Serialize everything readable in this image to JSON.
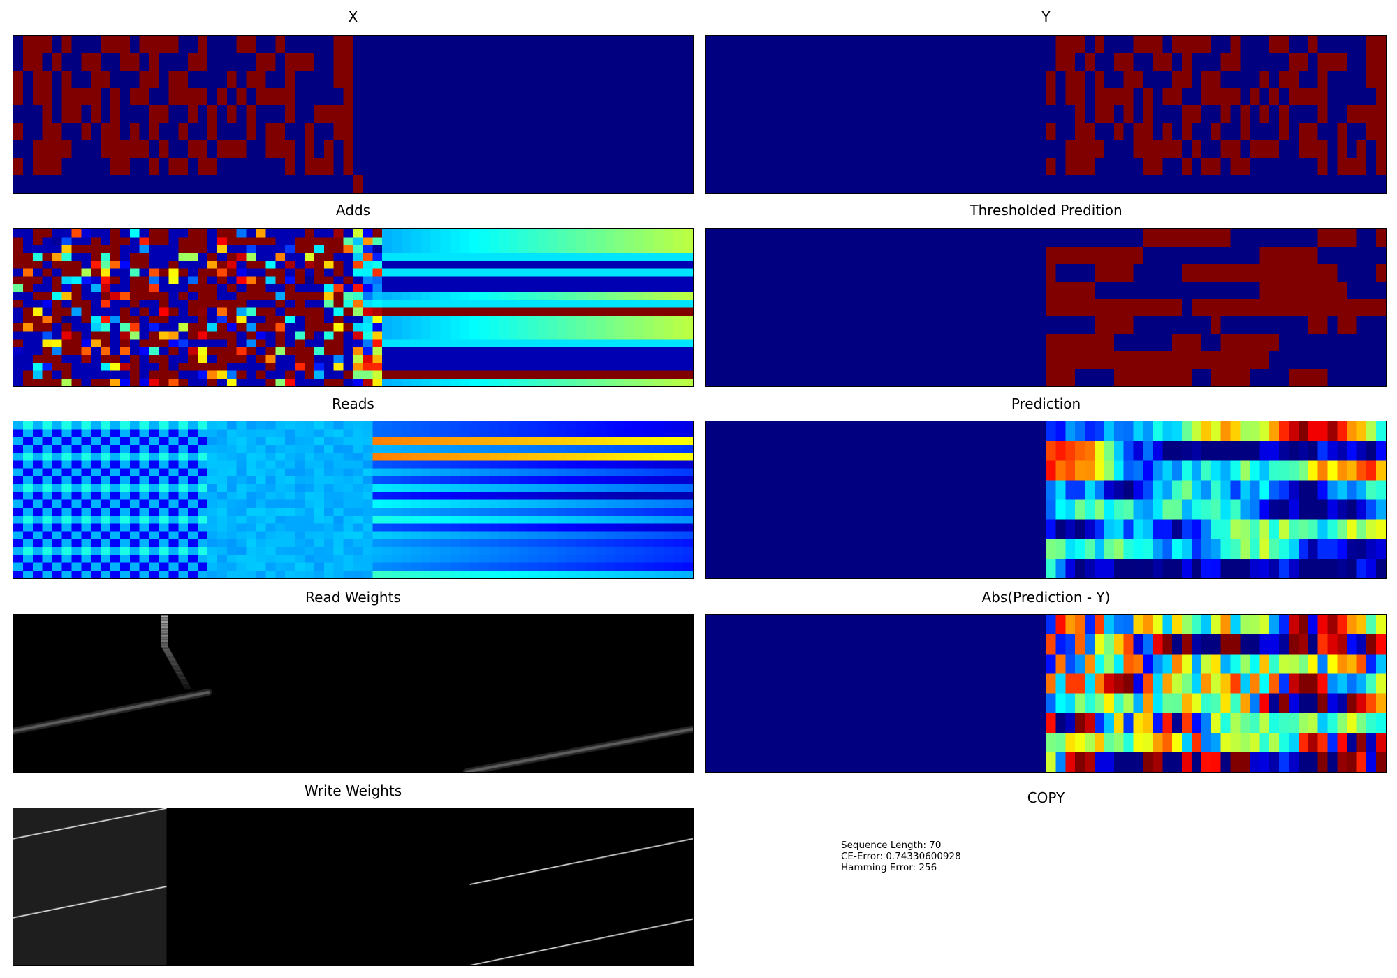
{
  "chart_data": [
    {
      "id": "x",
      "type": "heatmap",
      "title": "X",
      "colormap": "jet",
      "rows": 9,
      "cols": 70,
      "content": "binary input sequence in first 35 steps, end marker bit at step 35"
    },
    {
      "id": "y",
      "type": "heatmap",
      "title": "Y",
      "colormap": "jet",
      "rows": 9,
      "cols": 70,
      "content": "binary target sequence in last 35 steps"
    },
    {
      "id": "adds",
      "type": "heatmap",
      "title": "Adds",
      "colormap": "jet",
      "rows": 20,
      "cols": 70
    },
    {
      "id": "thresholded",
      "type": "heatmap",
      "title": "Thresholded Predition",
      "colormap": "jet",
      "rows": 9,
      "cols": 70
    },
    {
      "id": "reads",
      "type": "heatmap",
      "title": "Reads",
      "colormap": "jet",
      "rows": 20,
      "cols": 70
    },
    {
      "id": "prediction",
      "type": "heatmap",
      "title": "Prediction",
      "colormap": "jet",
      "rows": 8,
      "cols": 70
    },
    {
      "id": "read_weights",
      "type": "heatmap",
      "title": "Read Weights",
      "colormap": "gray",
      "rows": 70,
      "cols": 70
    },
    {
      "id": "abs_error",
      "type": "heatmap",
      "title": "Abs(Prediction - Y)",
      "colormap": "jet",
      "rows": 8,
      "cols": 70
    },
    {
      "id": "write_weights",
      "type": "heatmap",
      "title": "Write Weights",
      "colormap": "gray",
      "rows": 70,
      "cols": 70
    }
  ],
  "colors": {
    "jet_low": "#000080",
    "jet_high": "#800000",
    "gray_low": "#000000",
    "gray_high": "#ffffff"
  },
  "summary": {
    "title": "COPY",
    "sequence_length": "Sequence Length: 70",
    "ce_error": "CE-Error: 0.74330600928",
    "hamming_error": "Hamming Error: 256"
  }
}
